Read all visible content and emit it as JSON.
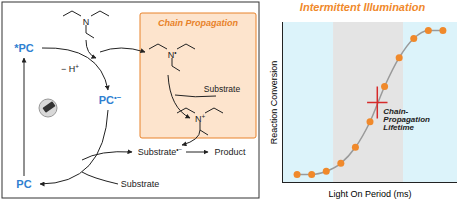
{
  "diagram": {
    "pc_excited": {
      "text": "*PC",
      "color": "#2f7fd1"
    },
    "pc_reduced": {
      "text": "PC",
      "sup": "•−",
      "color": "#2f7fd1"
    },
    "pc_ground": {
      "text": "PC",
      "color": "#2f7fd1"
    },
    "proton_loss": {
      "text": "− H",
      "sup": "+"
    },
    "amine": {
      "text": "N"
    },
    "box": {
      "title": "Chain Propagation",
      "color": "#e8822a",
      "fill": "#fde4cd"
    },
    "amine_radical": {
      "text": "N",
      "sup": "•"
    },
    "box_substrate": {
      "text": "Substrate"
    },
    "iminium": {
      "text": "N",
      "sup": "+"
    },
    "substrate_radical": {
      "text": "Substrate",
      "sup": "•−"
    },
    "product": {
      "text": "Product"
    },
    "substrate": {
      "text": "Substrate"
    }
  },
  "chart_data": {
    "type": "scatter",
    "title": "Intermittent Illumination",
    "title_color": "#f0892b",
    "x_label": "Light On Period (ms)",
    "y_label": "Reaction Conversion",
    "xlim": [
      0,
      12
    ],
    "ylim": [
      0,
      1
    ],
    "tick_labels": false,
    "x": [
      1,
      2,
      3,
      4,
      5,
      6,
      7,
      8,
      9,
      10,
      11
    ],
    "series": [
      {
        "type": "line",
        "color": "#9a9a9a",
        "values": [
          0.05,
          0.05,
          0.07,
          0.12,
          0.22,
          0.38,
          0.6,
          0.78,
          0.9,
          0.95,
          0.95
        ]
      },
      {
        "type": "scatter",
        "marker": "circle",
        "color": "#f0892b",
        "values": [
          0.05,
          0.05,
          0.07,
          0.12,
          0.22,
          0.38,
          0.6,
          0.78,
          0.9,
          0.95,
          0.95
        ]
      }
    ],
    "regions": [
      {
        "x0": 0,
        "x1": 3.5,
        "color": "#dcf3fa"
      },
      {
        "x0": 3.5,
        "x1": 8.3,
        "color": "#e4e4e4"
      },
      {
        "x0": 8.3,
        "x1": 12,
        "color": "#dcf3fa"
      }
    ],
    "annotation": {
      "text": "Chain-Propagation Lifetime",
      "x": 6.5,
      "y": 0.5,
      "x_error": 0.7,
      "y_error": 0.1,
      "color": "#d62a2a"
    }
  }
}
